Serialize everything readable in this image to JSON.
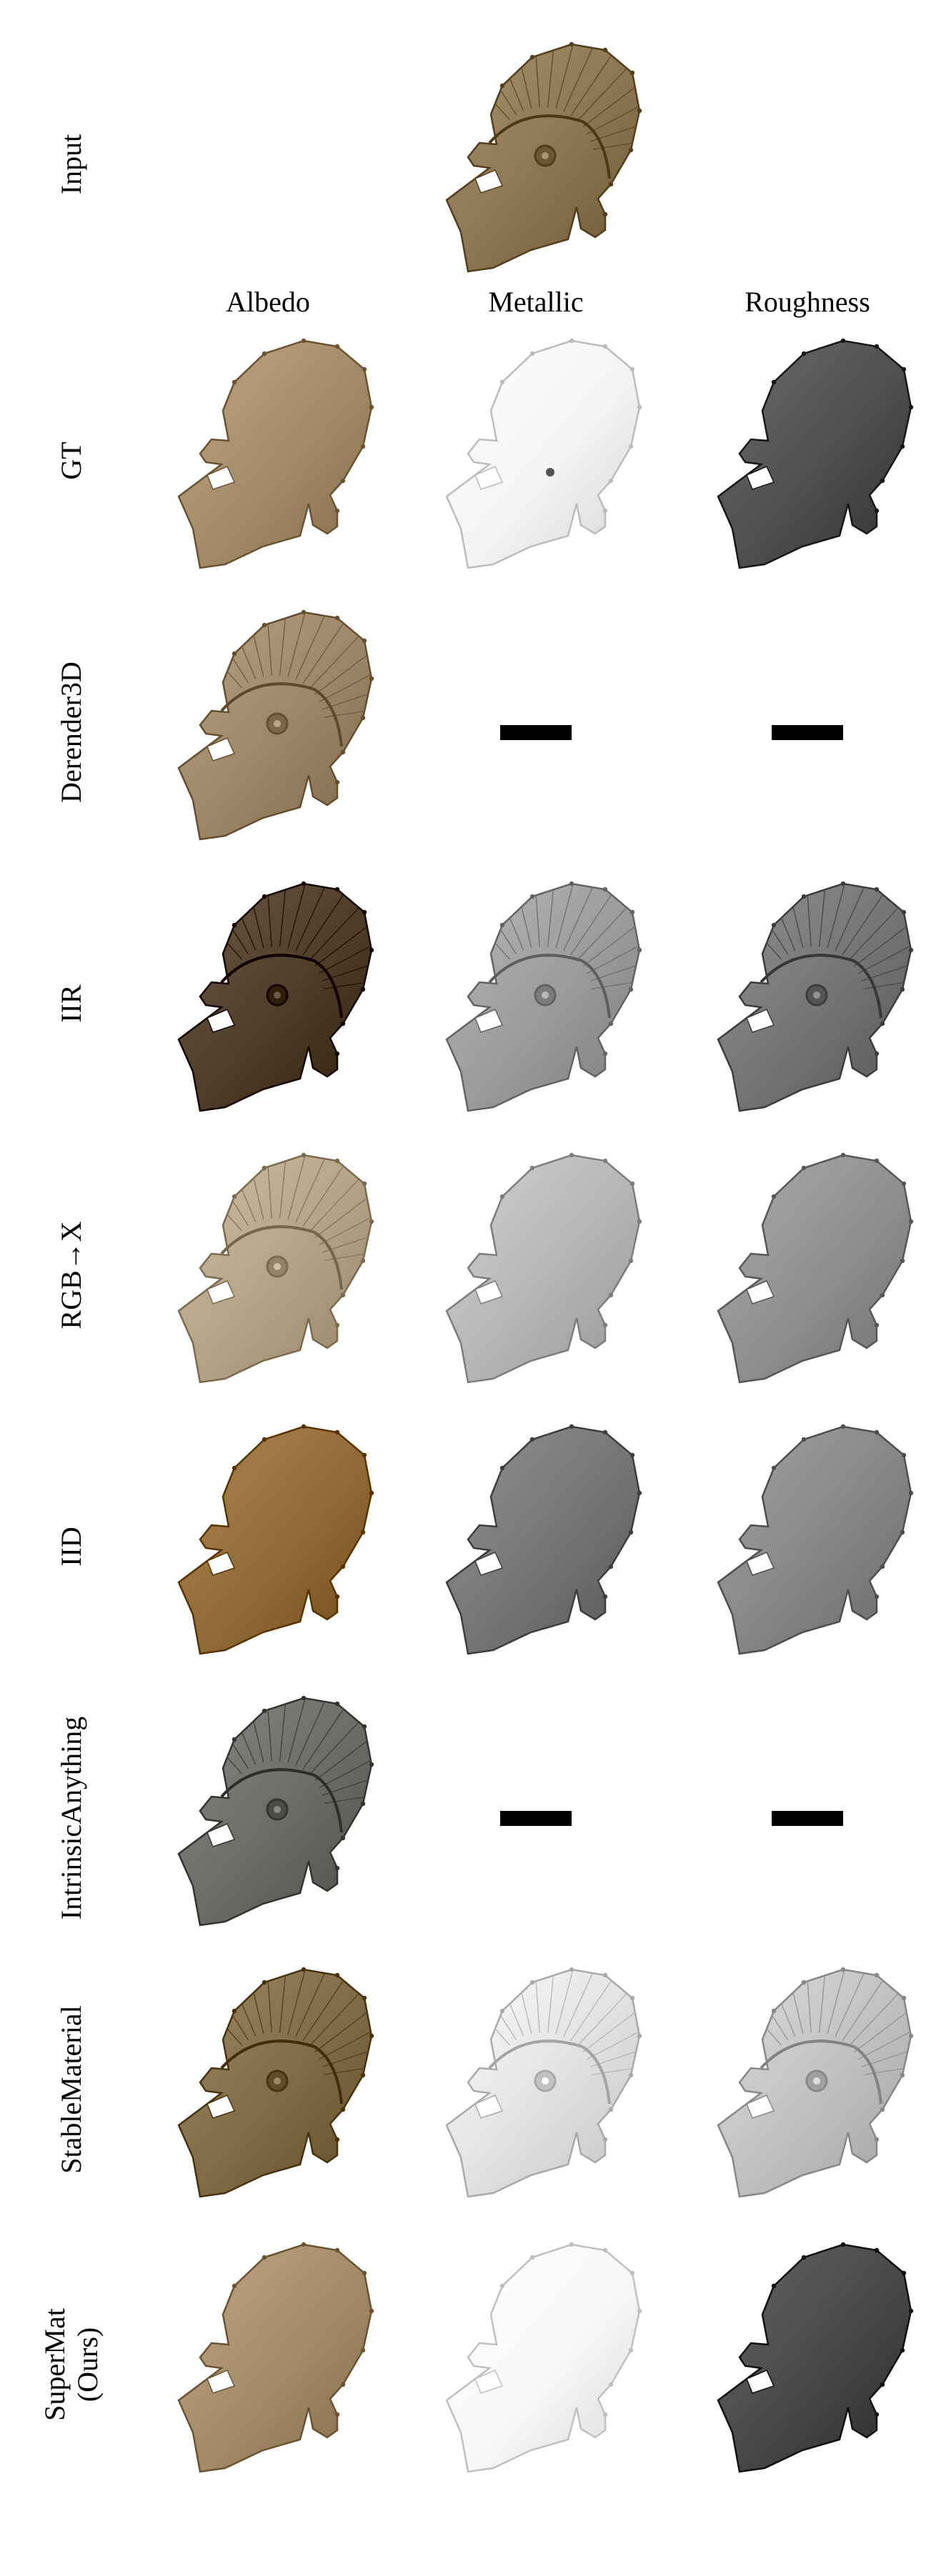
{
  "column_headers": [
    "Albedo",
    "Metallic",
    "Roughness"
  ],
  "rows": [
    {
      "label": "Input",
      "kind": "input",
      "cells": [
        {
          "map": "input-render",
          "fill": "#8a7452",
          "crest": true
        }
      ]
    },
    {
      "label": "GT",
      "cells": [
        {
          "map": "albedo",
          "fill": "#a28a68"
        },
        {
          "map": "metallic",
          "fill": "#f3f3f3",
          "dot": true
        },
        {
          "map": "roughness",
          "fill": "#4e4e4e"
        }
      ]
    },
    {
      "label": "Derender3D",
      "cells": [
        {
          "map": "albedo",
          "fill": "#9c8566",
          "crest": true
        },
        {
          "map": "metallic",
          "missing": true
        },
        {
          "map": "roughness",
          "missing": true
        }
      ]
    },
    {
      "label": "IIR",
      "cells": [
        {
          "map": "albedo",
          "fill": "#4c3c28",
          "crest": true
        },
        {
          "map": "metallic",
          "fill": "#9a9a9a",
          "crest": true
        },
        {
          "map": "roughness",
          "fill": "#737373",
          "crest": true
        }
      ]
    },
    {
      "label": "RGB→X",
      "cells": [
        {
          "map": "albedo",
          "fill": "#b3a186",
          "crest": true
        },
        {
          "map": "metallic",
          "fill": "#b4b4b4"
        },
        {
          "map": "roughness",
          "fill": "#8e8e8e"
        }
      ]
    },
    {
      "label": "IID",
      "cells": [
        {
          "map": "albedo",
          "fill": "#8f6a36"
        },
        {
          "map": "metallic",
          "fill": "#747474"
        },
        {
          "map": "roughness",
          "fill": "#858585"
        }
      ]
    },
    {
      "label": "IntrinsicAnything",
      "cells": [
        {
          "map": "albedo",
          "fill": "#6a6a66",
          "crest": true
        },
        {
          "map": "metallic",
          "missing": true
        },
        {
          "map": "roughness",
          "missing": true
        }
      ]
    },
    {
      "label": "StableMaterial",
      "cells": [
        {
          "map": "albedo",
          "fill": "#7f6a45",
          "crest": true
        },
        {
          "map": "metallic",
          "fill": "#e0e0e0",
          "crest": true
        },
        {
          "map": "roughness",
          "fill": "#bfbfbf",
          "crest": true
        }
      ]
    },
    {
      "label": "SuperMat\n(Ours)",
      "cells": [
        {
          "map": "albedo",
          "fill": "#a28a68"
        },
        {
          "map": "metallic",
          "fill": "#f7f7f7"
        },
        {
          "map": "roughness",
          "fill": "#474747"
        }
      ]
    }
  ]
}
